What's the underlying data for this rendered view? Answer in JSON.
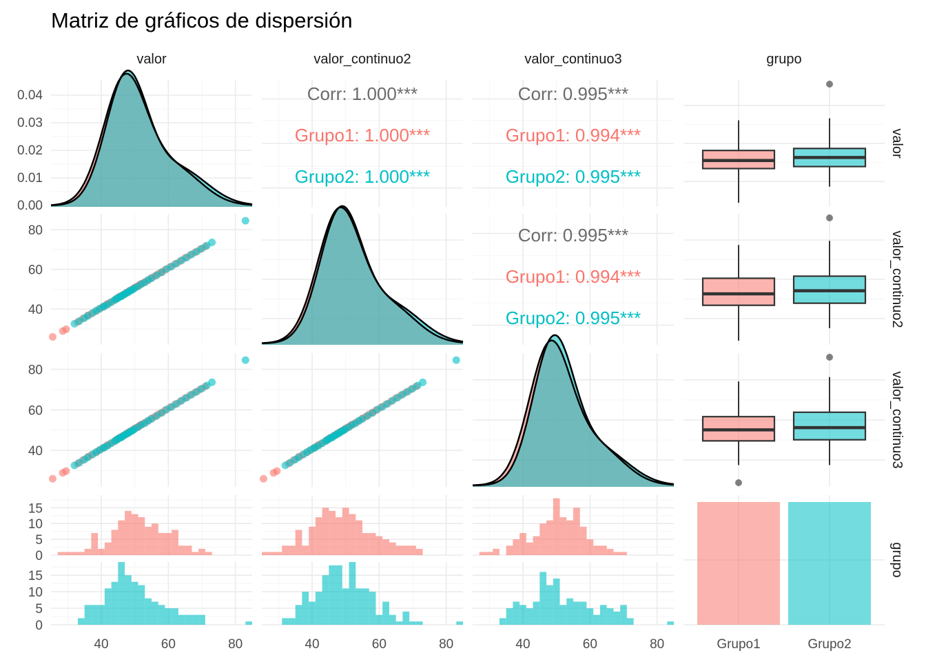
{
  "title": "Matriz de gráficos de dispersión",
  "variables": [
    "valor",
    "valor_continuo2",
    "valor_continuo3",
    "grupo"
  ],
  "groups": [
    "Grupo1",
    "Grupo2"
  ],
  "colors": {
    "Grupo1": "#F8766D",
    "Grupo2": "#00BFC4",
    "corr_overall": "#6b6b6b"
  },
  "chart_data": {
    "type": "scatter",
    "subtype": "ggpairs scatterplot matrix",
    "title": "Matriz de gráficos de dispersión",
    "axis_range": [
      25,
      85
    ],
    "axis_ticks": [
      "40",
      "60",
      "80"
    ],
    "density_axis_ticks": [
      "0.00",
      "0.01",
      "0.02",
      "0.03",
      "0.04"
    ],
    "density_ylim": [
      0,
      0.045
    ],
    "count_axis_ticks": [
      "0",
      "5",
      "10",
      "15"
    ],
    "count_ylim": [
      0,
      19
    ],
    "correlations": [
      {
        "pair": "valor-valor_continuo2",
        "overall": "Corr: 1.000***",
        "Grupo1": "Grupo1: 1.000***",
        "Grupo2": "Grupo2: 1.000***"
      },
      {
        "pair": "valor-valor_continuo3",
        "overall": "Corr: 0.995***",
        "Grupo1": "Grupo1: 0.994***",
        "Grupo2": "Grupo2: 0.995***"
      },
      {
        "pair": "valor_continuo2-valor_continuo3",
        "overall": "Corr: 0.995***",
        "Grupo1": "Grupo1: 0.994***",
        "Grupo2": "Grupo2: 0.995***"
      }
    ],
    "boxplots": {
      "valor": {
        "Grupo1": {
          "min": 25,
          "q1": 42,
          "median": 46,
          "q3": 51,
          "max": 66
        },
        "Grupo2": {
          "min": 33,
          "q1": 43,
          "median": 47.5,
          "q3": 52,
          "max": 67,
          "outliers": [
            84
          ]
        }
      },
      "valor_continuo2": {
        "Grupo1": {
          "min": 26,
          "q1": 43,
          "median": 48.5,
          "q3": 56,
          "max": 72
        },
        "Grupo2": {
          "min": 32,
          "q1": 44,
          "median": 50,
          "q3": 57,
          "max": 74,
          "outliers": [
            85
          ]
        }
      },
      "valor_continuo3": {
        "Grupo1": {
          "min": 33,
          "q1": 44,
          "median": 49,
          "q3": 55,
          "max": 71,
          "outliers": [
            25
          ]
        },
        "Grupo2": {
          "min": 33,
          "q1": 44.5,
          "median": 50,
          "q3": 57,
          "max": 73,
          "outliers": [
            82
          ]
        }
      }
    },
    "group_counts": {
      "Grupo1": 100,
      "Grupo2": 100
    },
    "histogram_bins": [
      25,
      27,
      29,
      31,
      33,
      35,
      37,
      39,
      41,
      43,
      45,
      47,
      49,
      51,
      53,
      55,
      57,
      59,
      61,
      63,
      65,
      67,
      69,
      71,
      73,
      75,
      77,
      79,
      81,
      83,
      85
    ],
    "histograms": {
      "valor": {
        "Grupo1": [
          0,
          1,
          1,
          1,
          1,
          2,
          7,
          2,
          4,
          8,
          11,
          14,
          13,
          12,
          9,
          10,
          7,
          7,
          8,
          3,
          3,
          1,
          2,
          1,
          0,
          0,
          0,
          0,
          0,
          0
        ],
        "Grupo2": [
          0,
          0,
          0,
          0,
          2,
          6,
          6,
          6,
          11,
          13,
          19,
          15,
          13,
          12,
          8,
          7,
          6,
          5,
          5,
          3,
          3,
          3,
          3,
          0,
          0,
          0,
          0,
          0,
          0,
          1
        ]
      },
      "valor_continuo2": {
        "Grupo1": [
          1,
          1,
          1,
          3,
          3,
          8,
          3,
          9,
          12,
          15,
          14,
          12,
          15,
          13,
          11,
          7,
          7,
          6,
          5,
          4,
          3,
          3,
          3,
          2,
          0,
          0,
          0,
          0,
          0,
          0
        ],
        "Grupo2": [
          0,
          0,
          0,
          2,
          2,
          6,
          10,
          7,
          10,
          15,
          18,
          18,
          11,
          19,
          11,
          11,
          10,
          3,
          7,
          3,
          1,
          4,
          1,
          1,
          0,
          0,
          0,
          0,
          0,
          1
        ]
      },
      "valor_continuo3": {
        "Grupo1": [
          0,
          1,
          1,
          2,
          0,
          3,
          5,
          7,
          4,
          6,
          10,
          11,
          18,
          12,
          11,
          15,
          9,
          5,
          3,
          3,
          2,
          1,
          1,
          0,
          0,
          0,
          0,
          0,
          0,
          0
        ],
        "Grupo2": [
          0,
          0,
          0,
          0,
          2,
          5,
          7,
          6,
          5,
          7,
          16,
          12,
          14,
          6,
          8,
          7,
          7,
          5,
          3,
          6,
          5,
          4,
          6,
          2,
          0,
          0,
          0,
          0,
          0,
          1
        ]
      }
    },
    "scatter_points": {
      "note_pairs": "x = column variable, y = row variable",
      "Grupo1": [
        [
          25.5,
          26.0
        ],
        [
          28.5,
          28.9
        ],
        [
          29.5,
          29.8
        ],
        [
          33.0,
          33.5
        ],
        [
          34.5,
          35.2
        ],
        [
          36.0,
          36.8
        ],
        [
          37.0,
          37.6
        ],
        [
          38.5,
          39.0
        ],
        [
          39.5,
          40.2
        ],
        [
          40.5,
          41.0
        ],
        [
          41.5,
          42.2
        ],
        [
          42.0,
          42.8
        ],
        [
          43.0,
          43.6
        ],
        [
          44.0,
          44.5
        ],
        [
          44.5,
          45.2
        ],
        [
          45.0,
          45.7
        ],
        [
          45.5,
          46.3
        ],
        [
          46.0,
          46.5
        ],
        [
          46.5,
          47.2
        ],
        [
          47.0,
          47.6
        ],
        [
          47.5,
          48.1
        ],
        [
          48.0,
          48.7
        ],
        [
          48.5,
          49.3
        ],
        [
          49.0,
          49.6
        ],
        [
          49.5,
          50.2
        ],
        [
          50.0,
          50.8
        ],
        [
          50.5,
          51.2
        ],
        [
          51.0,
          51.6
        ],
        [
          51.5,
          52.3
        ],
        [
          52.0,
          52.8
        ],
        [
          53.0,
          53.7
        ],
        [
          54.0,
          54.5
        ],
        [
          55.0,
          55.8
        ],
        [
          56.0,
          56.6
        ],
        [
          57.0,
          57.8
        ],
        [
          58.0,
          58.6
        ],
        [
          59.0,
          59.7
        ],
        [
          60.5,
          61.2
        ],
        [
          62.0,
          62.7
        ],
        [
          63.5,
          64.1
        ],
        [
          65.0,
          65.8
        ],
        [
          66.5,
          67.2
        ],
        [
          68.0,
          68.6
        ],
        [
          69.5,
          70.1
        ],
        [
          71.0,
          71.5
        ]
      ],
      "Grupo2": [
        [
          32.0,
          32.6
        ],
        [
          33.5,
          34.0
        ],
        [
          35.0,
          35.5
        ],
        [
          36.0,
          36.6
        ],
        [
          37.5,
          38.1
        ],
        [
          38.5,
          39.2
        ],
        [
          39.5,
          40.1
        ],
        [
          40.5,
          41.2
        ],
        [
          41.0,
          41.5
        ],
        [
          42.0,
          42.4
        ],
        [
          43.0,
          43.5
        ],
        [
          44.0,
          44.6
        ],
        [
          44.5,
          45.1
        ],
        [
          45.0,
          45.6
        ],
        [
          45.5,
          46.2
        ],
        [
          46.0,
          46.4
        ],
        [
          46.5,
          47.1
        ],
        [
          47.0,
          47.5
        ],
        [
          47.5,
          48.2
        ],
        [
          48.0,
          48.4
        ],
        [
          48.5,
          49.1
        ],
        [
          49.0,
          49.5
        ],
        [
          49.5,
          50.0
        ],
        [
          50.0,
          50.6
        ],
        [
          51.0,
          51.5
        ],
        [
          52.0,
          52.6
        ],
        [
          53.0,
          53.4
        ],
        [
          54.0,
          54.7
        ],
        [
          55.0,
          55.5
        ],
        [
          56.5,
          57.0
        ],
        [
          58.0,
          58.5
        ],
        [
          59.5,
          60.2
        ],
        [
          61.0,
          61.5
        ],
        [
          62.5,
          63.0
        ],
        [
          64.0,
          64.6
        ],
        [
          65.5,
          66.0
        ],
        [
          67.0,
          67.6
        ],
        [
          68.5,
          69.0
        ],
        [
          70.0,
          70.5
        ],
        [
          71.5,
          72.0
        ],
        [
          73.0,
          73.6
        ],
        [
          83.0,
          84.5
        ]
      ]
    },
    "density_note": "kernel densities per group, peak near 47"
  }
}
